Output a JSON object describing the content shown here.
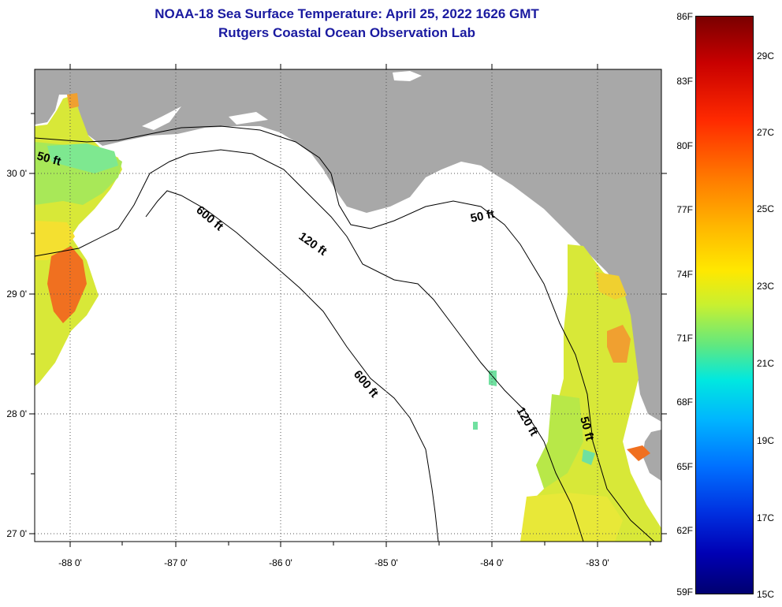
{
  "title": {
    "line1": "NOAA-18 Sea Surface Temperature:  April 25, 2022 1626 GMT",
    "line2": "Rutgers Coastal Ocean Observation Lab"
  },
  "axes": {
    "x_ticks": [
      "-88 0'",
      "-87 0'",
      "-86 0'",
      "-85 0'",
      "-84 0'",
      "-83 0'"
    ],
    "y_ticks": [
      "30 0'",
      "29 0'",
      "28 0'",
      "27 0'"
    ]
  },
  "contours": {
    "ft50": "50 ft",
    "ft120": "120 ft",
    "ft600": "600 ft"
  },
  "colorbar": {
    "fahrenheit": [
      "86F",
      "83F",
      "80F",
      "77F",
      "74F",
      "71F",
      "68F",
      "65F",
      "62F",
      "59F"
    ],
    "celsius": [
      "29C",
      "27C",
      "25C",
      "23C",
      "21C",
      "19C",
      "17C",
      "15C"
    ]
  },
  "colors": {
    "land": "#a8a8a8",
    "title": "#1a1aa0",
    "sst_warm": "#f07020",
    "sst_mid": "#e8f030",
    "sst_cool": "#90e860"
  }
}
